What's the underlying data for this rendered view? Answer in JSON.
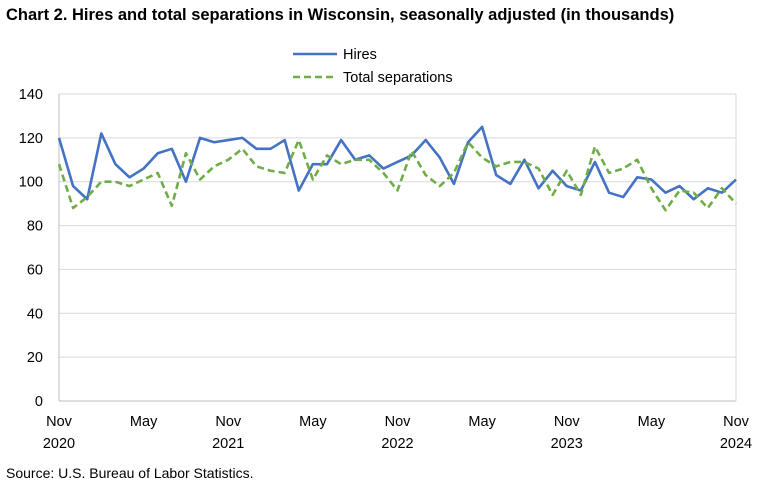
{
  "title": "Chart 2. Hires and total separations in Wisconsin, seasonally adjusted (in thousands)",
  "source": "Source: U.S. Bureau of Labor Statistics.",
  "chart_data": {
    "type": "line",
    "title": "Chart 2. Hires and total separations in Wisconsin, seasonally adjusted (in thousands)",
    "xlabel": "",
    "ylabel": "",
    "ylim": [
      0,
      140
    ],
    "yticks": [
      "0",
      "20",
      "40",
      "60",
      "80",
      "100",
      "120",
      "140"
    ],
    "grid": true,
    "legend_position": "top-center",
    "x_start": "2020-11",
    "x_end": "2024-11",
    "x_tick_labels": [
      {
        "month": "Nov",
        "year": "2020",
        "x": "2020-11"
      },
      {
        "month": "May",
        "year": "",
        "x": "2021-05"
      },
      {
        "month": "Nov",
        "year": "2021",
        "x": "2021-11"
      },
      {
        "month": "May",
        "year": "",
        "x": "2022-05"
      },
      {
        "month": "Nov",
        "year": "2022",
        "x": "2022-11"
      },
      {
        "month": "May",
        "year": "",
        "x": "2023-05"
      },
      {
        "month": "Nov",
        "year": "2023",
        "x": "2023-11"
      },
      {
        "month": "May",
        "year": "",
        "x": "2024-05"
      },
      {
        "month": "Nov",
        "year": "2024",
        "x": "2024-11"
      }
    ],
    "x": [
      "2020-11",
      "2020-12",
      "2021-01",
      "2021-02",
      "2021-03",
      "2021-04",
      "2021-05",
      "2021-06",
      "2021-07",
      "2021-08",
      "2021-09",
      "2021-10",
      "2021-11",
      "2021-12",
      "2022-01",
      "2022-02",
      "2022-03",
      "2022-04",
      "2022-05",
      "2022-06",
      "2022-07",
      "2022-08",
      "2022-09",
      "2022-10",
      "2022-11",
      "2022-12",
      "2023-01",
      "2023-02",
      "2023-03",
      "2023-04",
      "2023-05",
      "2023-06",
      "2023-07",
      "2023-08",
      "2023-09",
      "2023-10",
      "2023-11",
      "2023-12",
      "2024-01",
      "2024-02",
      "2024-03",
      "2024-04",
      "2024-05",
      "2024-06",
      "2024-07",
      "2024-08",
      "2024-09",
      "2024-10",
      "2024-11"
    ],
    "series": [
      {
        "name": "Hires",
        "color": "#4472c4",
        "style": "solid",
        "values": [
          120,
          98,
          92,
          122,
          108,
          102,
          106,
          113,
          115,
          100,
          120,
          118,
          119,
          120,
          115,
          115,
          119,
          96,
          108,
          108,
          119,
          110,
          112,
          106,
          109,
          112,
          119,
          111,
          99,
          118,
          125,
          103,
          99,
          110,
          97,
          105,
          98,
          96,
          109,
          95,
          93,
          102,
          101,
          95,
          98,
          92,
          97,
          95,
          101
        ]
      },
      {
        "name": "Total separations",
        "color": "#70ad47",
        "style": "dashed",
        "values": [
          108,
          88,
          93,
          100,
          100,
          98,
          101,
          104,
          89,
          113,
          101,
          107,
          110,
          115,
          107,
          105,
          104,
          119,
          101,
          112,
          108,
          110,
          110,
          104,
          96,
          114,
          103,
          98,
          104,
          118,
          111,
          107,
          109,
          109,
          106,
          94,
          105,
          94,
          116,
          104,
          106,
          110,
          97,
          87,
          96,
          95,
          88,
          97,
          90
        ]
      }
    ]
  }
}
